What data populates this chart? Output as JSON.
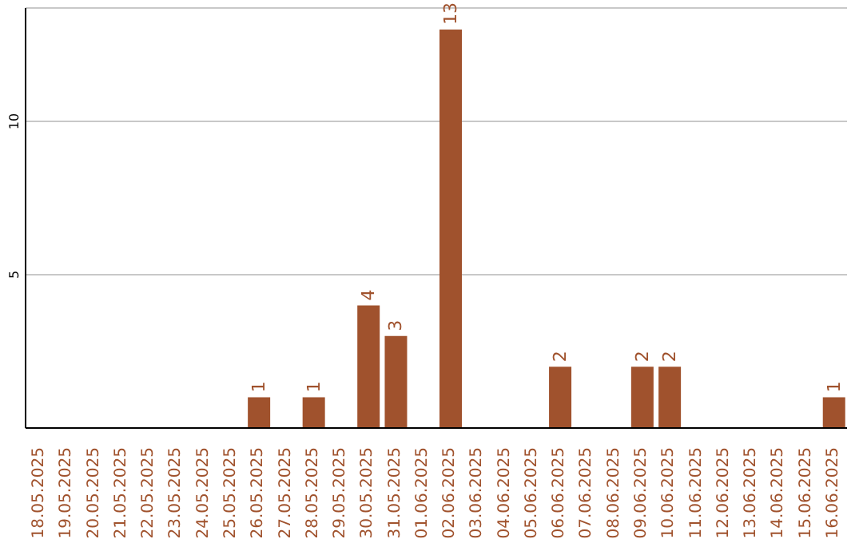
{
  "chart_data": {
    "type": "bar",
    "categories": [
      "18.05.2025",
      "19.05.2025",
      "20.05.2025",
      "21.05.2025",
      "22.05.2025",
      "23.05.2025",
      "24.05.2025",
      "25.05.2025",
      "26.05.2025",
      "27.05.2025",
      "28.05.2025",
      "29.05.2025",
      "30.05.2025",
      "31.05.2025",
      "01.06.2025",
      "02.06.2025",
      "03.06.2025",
      "04.06.2025",
      "05.06.2025",
      "06.06.2025",
      "07.06.2025",
      "08.06.2025",
      "09.06.2025",
      "10.06.2025",
      "11.06.2025",
      "12.06.2025",
      "13.06.2025",
      "14.06.2025",
      "15.06.2025",
      "16.06.2025"
    ],
    "values": [
      0,
      0,
      0,
      0,
      0,
      0,
      0,
      0,
      1,
      0,
      1,
      0,
      4,
      3,
      0,
      13,
      0,
      0,
      0,
      2,
      0,
      0,
      2,
      2,
      0,
      0,
      0,
      0,
      0,
      1
    ],
    "value_labels": [
      null,
      null,
      null,
      null,
      null,
      null,
      null,
      null,
      "1",
      null,
      "1",
      null,
      "4",
      "3",
      null,
      "13",
      null,
      null,
      null,
      "2",
      null,
      null,
      "2",
      "2",
      null,
      null,
      null,
      null,
      null,
      "1"
    ],
    "color": "#a0522d",
    "ylim": [
      0,
      13.7
    ],
    "yticks": [
      5,
      10
    ],
    "grid": "y"
  }
}
